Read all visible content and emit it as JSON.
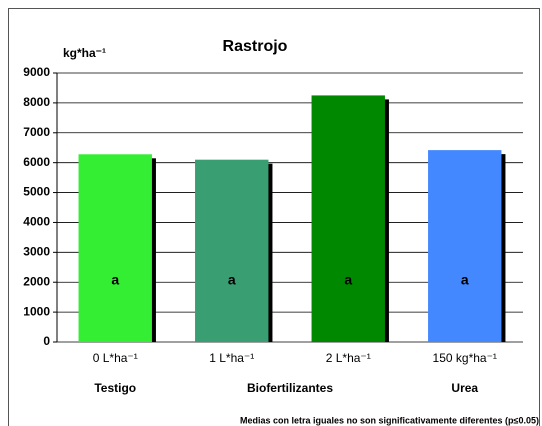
{
  "chart_data": {
    "type": "bar",
    "title": "Rastrojo",
    "y_label": "kg*ha⁻¹",
    "categories": [
      "0 L*ha⁻¹",
      "1 L*ha⁻¹",
      "2 L*ha⁻¹",
      "150 kg*ha⁻¹"
    ],
    "values": [
      6280,
      6100,
      8250,
      6420
    ],
    "colors": [
      "#33ee33",
      "#3a9e73",
      "#008800",
      "#4488ff"
    ],
    "letters": [
      "a",
      "a",
      "a",
      "a"
    ],
    "groups": [
      "Testigo",
      "Biofertilizantes",
      "Urea"
    ],
    "note": "Medias con letra iguales no son significativamente diferentes (p≤0.05)",
    "ylim": [
      0,
      9000
    ],
    "yticks": [
      0,
      1000,
      2000,
      3000,
      4000,
      5000,
      6000,
      7000,
      8000,
      9000
    ],
    "grid": true
  }
}
